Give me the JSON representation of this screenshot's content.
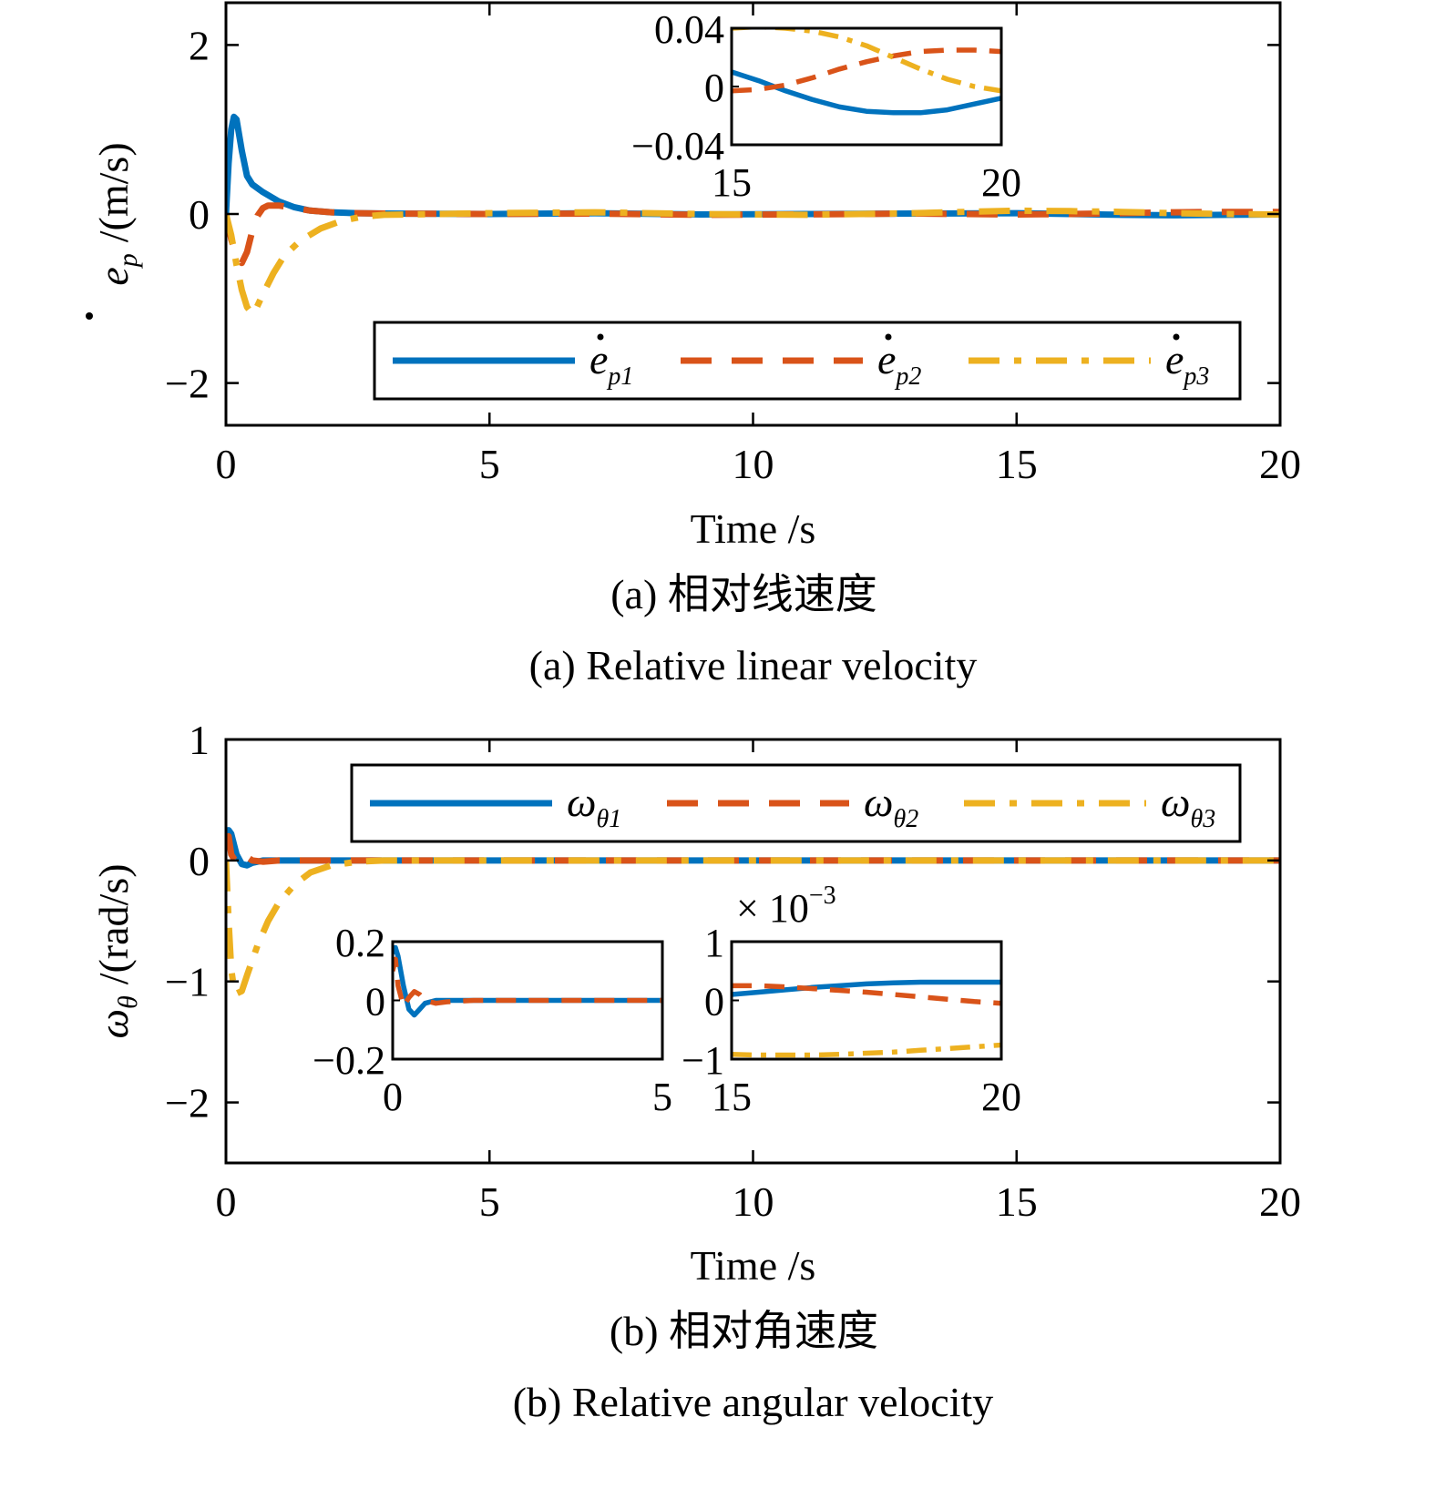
{
  "chart_data": [
    {
      "id": "a",
      "type": "line",
      "xlabel": "Time /s",
      "ylabel": "ė_p /(m/s)",
      "ylabel_parts": {
        "symbol": "e",
        "sub": "p",
        "unit": "/(m/s)"
      },
      "caption_cn": "(a) 相对线速度",
      "caption_en": "(a) Relative linear velocity",
      "xlim": [
        0,
        20
      ],
      "ylim": [
        -2.5,
        2.5
      ],
      "xticks": [
        0,
        5,
        10,
        15,
        20
      ],
      "xtick_labels": [
        "0",
        "5",
        "10",
        "15",
        "20"
      ],
      "yticks": [
        -2,
        0,
        2
      ],
      "ytick_labels": [
        "−2",
        "0",
        "2"
      ],
      "grid": false,
      "legend": {
        "placement": "lower-right",
        "orientation": "horizontal",
        "entries": [
          {
            "symbol": "e",
            "sub": "p1"
          },
          {
            "symbol": "e",
            "sub": "p2"
          },
          {
            "symbol": "e",
            "sub": "p3"
          }
        ]
      },
      "series": [
        {
          "name": "ė_p1",
          "style": "solid",
          "color": "#0072BD",
          "x": [
            0,
            0.05,
            0.1,
            0.15,
            0.2,
            0.3,
            0.4,
            0.5,
            0.7,
            1.0,
            1.3,
            1.6,
            2.0,
            2.5,
            3,
            5,
            7,
            9,
            11,
            13,
            15,
            16,
            17,
            18,
            19,
            20
          ],
          "y": [
            0,
            0.6,
            1.0,
            1.15,
            1.12,
            0.75,
            0.45,
            0.35,
            0.26,
            0.15,
            0.08,
            0.04,
            0.02,
            0.01,
            0.005,
            0.0,
            0.01,
            -0.005,
            0.0,
            0.005,
            0.01,
            0.0,
            -0.01,
            -0.015,
            -0.01,
            -0.005
          ]
        },
        {
          "name": "ė_p2",
          "style": "dashed",
          "color": "#D95319",
          "x": [
            0,
            0.1,
            0.2,
            0.3,
            0.4,
            0.5,
            0.6,
            0.7,
            0.8,
            1.0,
            1.3,
            1.6,
            2.0,
            2.5,
            3,
            5,
            7,
            9,
            11,
            13,
            15,
            16,
            17,
            18,
            19,
            20
          ],
          "y": [
            0,
            -0.3,
            -0.5,
            -0.58,
            -0.45,
            -0.2,
            -0.02,
            0.07,
            0.1,
            0.1,
            0.07,
            0.04,
            0.02,
            0.01,
            0.005,
            0.0,
            0.005,
            -0.01,
            -0.005,
            0.005,
            -0.005,
            0.0,
            0.01,
            0.02,
            0.025,
            0.025
          ]
        },
        {
          "name": "ė_p3",
          "style": "dashdot",
          "color": "#EDB120",
          "x": [
            0,
            0.1,
            0.2,
            0.3,
            0.4,
            0.5,
            0.55,
            0.7,
            0.9,
            1.1,
            1.4,
            1.8,
            2.2,
            2.6,
            3,
            5,
            7,
            9,
            11,
            13,
            15,
            16,
            17,
            18,
            19,
            20
          ],
          "y": [
            0,
            -0.25,
            -0.6,
            -0.9,
            -1.1,
            -1.18,
            -1.15,
            -0.95,
            -0.7,
            -0.5,
            -0.32,
            -0.17,
            -0.08,
            -0.03,
            -0.01,
            0.01,
            0.02,
            0.0,
            -0.01,
            0.01,
            0.04,
            0.035,
            0.025,
            0.01,
            0.0,
            -0.005
          ]
        }
      ],
      "insets": [
        {
          "xlim": [
            15,
            20
          ],
          "ylim": [
            -0.04,
            0.04
          ],
          "xticks": [
            15,
            20
          ],
          "xtick_labels": [
            "15",
            "20"
          ],
          "yticks": [
            -0.04,
            0,
            0.04
          ],
          "ytick_labels": [
            "−0.04",
            "0",
            "0.04"
          ],
          "series_x": [
            15,
            15.5,
            16,
            16.5,
            17,
            17.5,
            18,
            18.5,
            19,
            19.5,
            20
          ],
          "series_y": [
            [
              0.01,
              0.004,
              -0.003,
              -0.009,
              -0.014,
              -0.017,
              -0.018,
              -0.018,
              -0.016,
              -0.012,
              -0.008
            ],
            [
              -0.003,
              -0.002,
              0.001,
              0.006,
              0.012,
              0.017,
              0.021,
              0.024,
              0.025,
              0.025,
              0.024
            ],
            [
              0.04,
              0.041,
              0.04,
              0.038,
              0.034,
              0.028,
              0.02,
              0.012,
              0.005,
              0.0,
              -0.003
            ]
          ]
        }
      ]
    },
    {
      "id": "b",
      "type": "line",
      "xlabel": "Time /s",
      "ylabel": "ω_θ /(rad/s)",
      "ylabel_parts": {
        "symbol": "ω",
        "sub": "θ",
        "unit": "/(rad/s)"
      },
      "caption_cn": "(b) 相对角速度",
      "caption_en": "(b) Relative angular velocity",
      "xlim": [
        0,
        20
      ],
      "ylim": [
        -2.5,
        1
      ],
      "xticks": [
        0,
        5,
        10,
        15,
        20
      ],
      "xtick_labels": [
        "0",
        "5",
        "10",
        "15",
        "20"
      ],
      "yticks": [
        -2,
        -1,
        0,
        1
      ],
      "ytick_labels": [
        "−2",
        "−1",
        "0",
        "1"
      ],
      "grid": false,
      "legend": {
        "placement": "top-right",
        "orientation": "horizontal",
        "entries": [
          {
            "symbol": "ω",
            "sub": "θ1"
          },
          {
            "symbol": "ω",
            "sub": "θ2"
          },
          {
            "symbol": "ω",
            "sub": "θ3"
          }
        ]
      },
      "series": [
        {
          "name": "ω_θ1",
          "style": "solid",
          "color": "#0072BD",
          "x": [
            0,
            0.05,
            0.1,
            0.2,
            0.3,
            0.4,
            0.5,
            0.7,
            1.0,
            1.5,
            2,
            5,
            10,
            15,
            20
          ],
          "y": [
            0.1,
            0.25,
            0.22,
            0.05,
            -0.03,
            -0.04,
            -0.02,
            0.0,
            0.0,
            0.0,
            0.0,
            0.0,
            0.0,
            0.0,
            0.0
          ]
        },
        {
          "name": "ω_θ2",
          "style": "dashed",
          "color": "#D95319",
          "x": [
            0,
            0.05,
            0.1,
            0.2,
            0.3,
            0.4,
            0.5,
            0.7,
            1.0,
            1.5,
            2,
            5,
            10,
            15,
            20
          ],
          "y": [
            0.15,
            0.2,
            0.05,
            -0.02,
            0.03,
            0.03,
            0.0,
            -0.01,
            0.0,
            0.0,
            0.0,
            0.0,
            0.0,
            0.0,
            0.0
          ]
        },
        {
          "name": "ω_θ3",
          "style": "dashdot",
          "color": "#EDB120",
          "x": [
            0,
            0.05,
            0.1,
            0.15,
            0.2,
            0.3,
            0.4,
            0.6,
            0.8,
            1.0,
            1.3,
            1.6,
            2.0,
            2.5,
            3.0,
            5,
            10,
            15,
            20
          ],
          "y": [
            0,
            -0.5,
            -0.9,
            -1.05,
            -1.1,
            -1.08,
            -0.95,
            -0.7,
            -0.5,
            -0.35,
            -0.2,
            -0.1,
            -0.04,
            -0.01,
            0.0,
            0.0,
            0.0,
            0.0,
            0.0
          ]
        }
      ],
      "insets": [
        {
          "xlim": [
            0,
            5
          ],
          "ylim": [
            -0.2,
            0.2
          ],
          "xticks": [
            0,
            5
          ],
          "xtick_labels": [
            "0",
            "5"
          ],
          "yticks": [
            -0.2,
            0,
            0.2
          ],
          "ytick_labels": [
            "−0.2",
            "0",
            "0.2"
          ],
          "series_x": [
            0,
            0.05,
            0.1,
            0.2,
            0.3,
            0.4,
            0.5,
            0.6,
            0.8,
            1.0,
            1.5,
            2,
            3,
            4,
            5
          ],
          "series_y": [
            [
              0.16,
              0.18,
              0.15,
              0.05,
              -0.03,
              -0.05,
              -0.03,
              -0.01,
              0.0,
              0.0,
              0.0,
              0.0,
              0.0,
              0.0,
              0.0
            ],
            [
              0.1,
              0.14,
              0.05,
              -0.02,
              0.01,
              0.03,
              0.02,
              0.0,
              -0.01,
              -0.005,
              0.0,
              0.0,
              0.0,
              0.0,
              0.0
            ],
            [
              null,
              null,
              null,
              null,
              null,
              null,
              null,
              null,
              null,
              null,
              null,
              null,
              null,
              null,
              null
            ]
          ]
        },
        {
          "xlim": [
            15,
            20
          ],
          "ylim": [
            -1,
            1
          ],
          "scale_label": "× 10⁻³",
          "scale_base": "× 10",
          "scale_exp": "−3",
          "xticks": [
            15,
            20
          ],
          "xtick_labels": [
            "15",
            "20"
          ],
          "yticks": [
            -1,
            0,
            1
          ],
          "ytick_labels": [
            "−1",
            "0",
            "1"
          ],
          "series_x": [
            15,
            15.5,
            16,
            16.5,
            17,
            17.5,
            18,
            18.5,
            19,
            19.5,
            20
          ],
          "series_y": [
            [
              0.1,
              0.14,
              0.18,
              0.22,
              0.25,
              0.28,
              0.3,
              0.31,
              0.31,
              0.31,
              0.31
            ],
            [
              0.25,
              0.25,
              0.23,
              0.2,
              0.17,
              0.14,
              0.1,
              0.06,
              0.02,
              -0.02,
              -0.05
            ],
            [
              -0.92,
              -0.93,
              -0.93,
              -0.93,
              -0.92,
              -0.9,
              -0.88,
              -0.85,
              -0.82,
              -0.79,
              -0.76
            ]
          ]
        }
      ]
    }
  ]
}
